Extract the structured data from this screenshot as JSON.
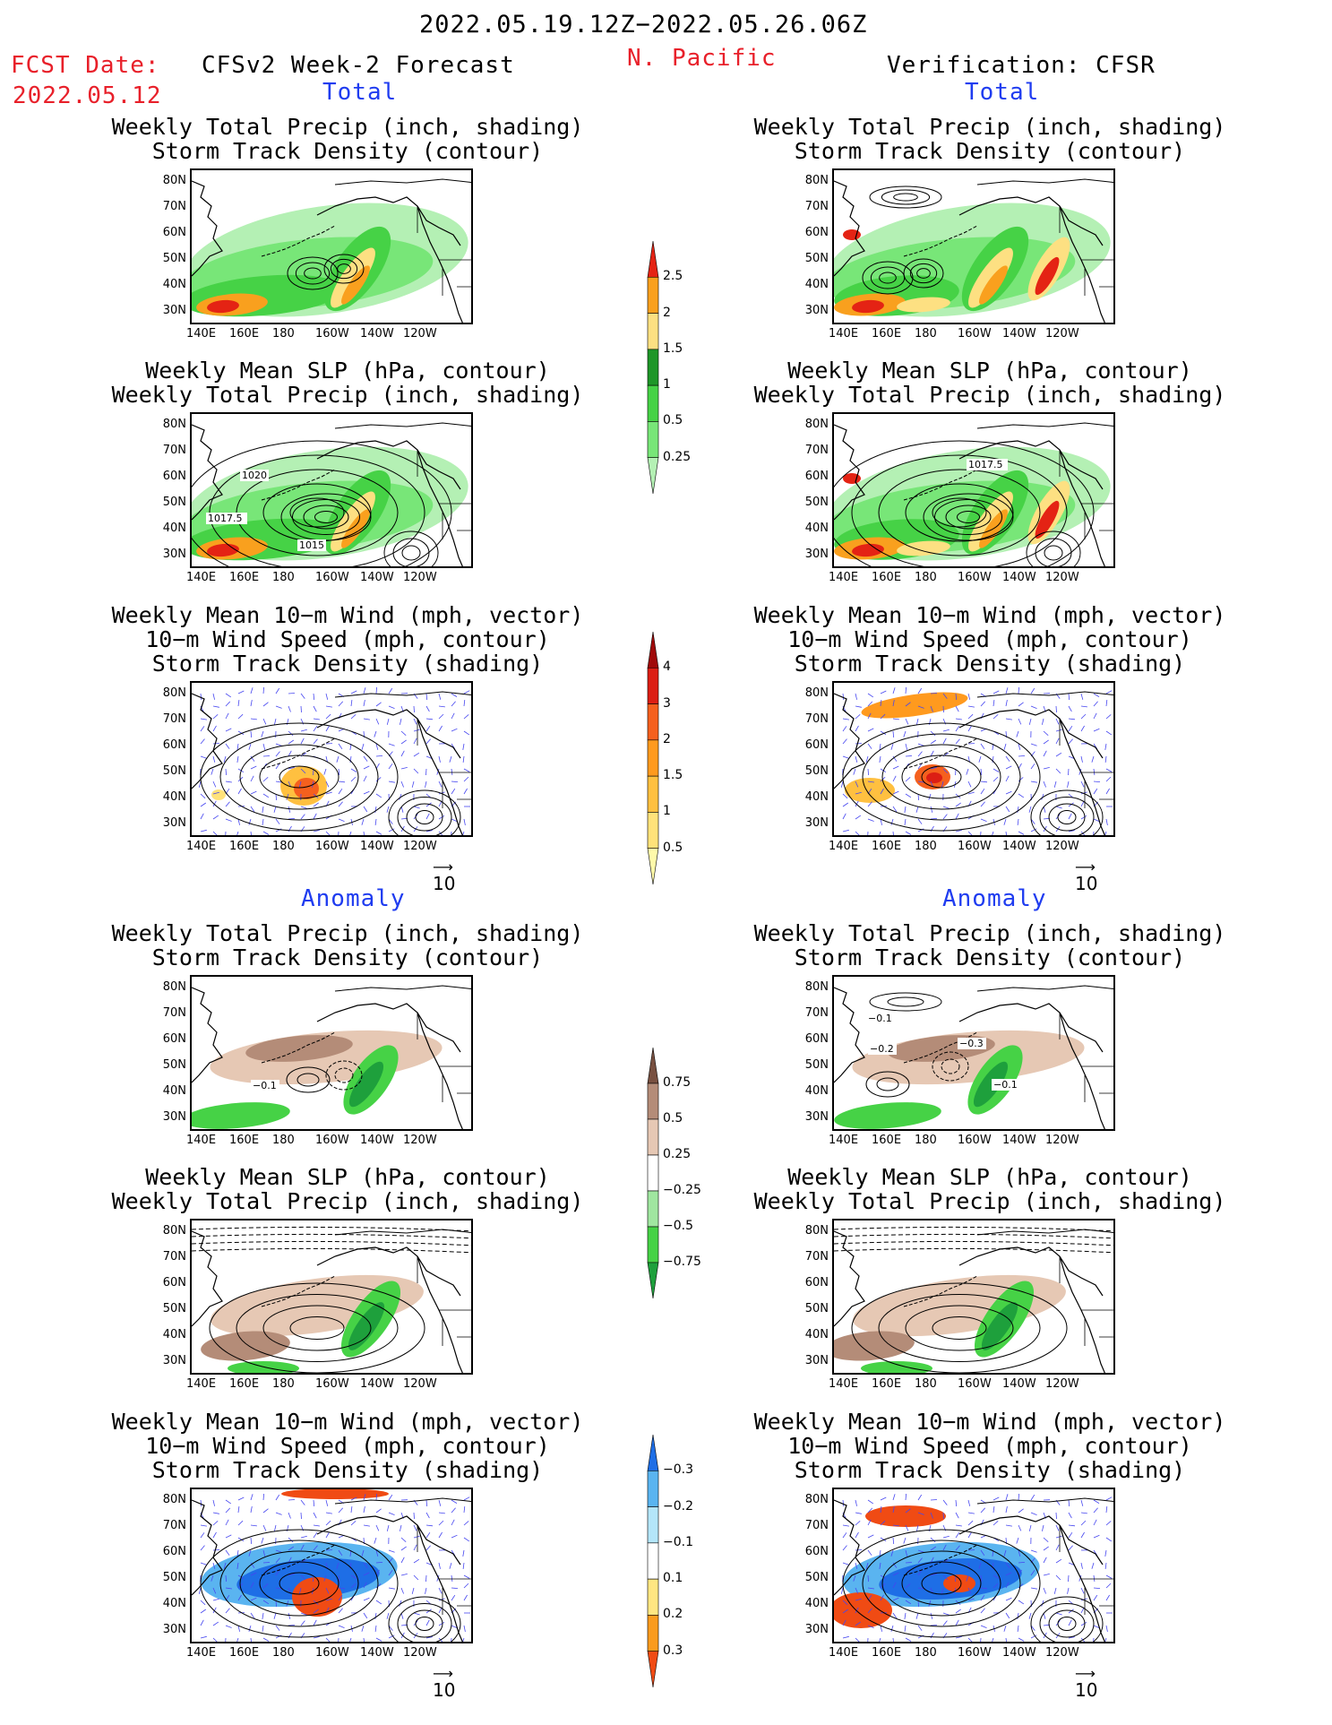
{
  "header": {
    "period": "2022.05.19.12Z−2022.05.26.06Z",
    "fcst_label": "FCST Date:",
    "fcst_date": "2022.05.12",
    "left_model": "CFSv2 Week-2 Forecast",
    "region": "N. Pacific",
    "right_model": "Verification: CFSR"
  },
  "sections": {
    "total": "Total",
    "anomaly": "Anomaly"
  },
  "titles": {
    "precip_storm": [
      "Weekly Total Precip (inch, shading)",
      "Storm Track Density (contour)"
    ],
    "slp_precip": [
      "Weekly Mean SLP (hPa, contour)",
      "Weekly Total Precip (inch, shading)"
    ],
    "wind_storm": [
      "Weekly Mean 10−m Wind (mph, vector)",
      "10−m Wind Speed (mph, contour)",
      "Storm Track Density (shading)"
    ]
  },
  "axes": {
    "lat_labels": [
      "80N",
      "70N",
      "60N",
      "50N",
      "40N",
      "30N"
    ],
    "lon_labels": [
      "140E",
      "160E",
      "180",
      "160W",
      "140W",
      "120W"
    ]
  },
  "vector_ref": "10",
  "contour_labels": {
    "fc_slp_total": [
      "1020",
      "1017.5",
      "1015"
    ],
    "vr_slp_total": [
      "1017.5"
    ],
    "fc_precip_anom": [
      "−0.1"
    ],
    "vr_precip_anom": [
      "−0.1",
      "−0.2",
      "−0.3",
      "−0.1"
    ]
  },
  "colorbars": {
    "precip_total": {
      "labels": [
        "0.25",
        "0.5",
        "1",
        "1.5",
        "2",
        "2.5"
      ],
      "colors": [
        "#b4f0b4",
        "#78e678",
        "#46d246",
        "#1e9628",
        "#fde082",
        "#f9a01e",
        "#e42314"
      ]
    },
    "storm_total": {
      "labels": [
        "0.5",
        "1",
        "1.5",
        "2",
        "3",
        "4"
      ],
      "colors": [
        "#fffaaa",
        "#ffe27a",
        "#ffc040",
        "#ff9a1e",
        "#f5601e",
        "#dc1e14",
        "#a00a0a"
      ]
    },
    "precip_anom": {
      "labels": [
        "0.75",
        "0.5",
        "0.25",
        "−0.25",
        "−0.5",
        "−0.75"
      ],
      "colors": [
        "#1ea03c",
        "#46d246",
        "#a0e6a0",
        "#ffffff",
        "#e6c8b4",
        "#b48c78",
        "#785040"
      ]
    },
    "storm_anom": {
      "labels": [
        "0.3",
        "0.2",
        "0.1",
        "−0.1",
        "−0.2",
        "−0.3"
      ],
      "colors": [
        "#f04b14",
        "#fa9b1e",
        "#ffe682",
        "#ffffff",
        "#b4e6fa",
        "#5ab4f0",
        "#1e6ee6"
      ]
    }
  },
  "map_colors": {
    "coast": "#000000",
    "contour": "#000000",
    "vector": "#4646f0"
  }
}
